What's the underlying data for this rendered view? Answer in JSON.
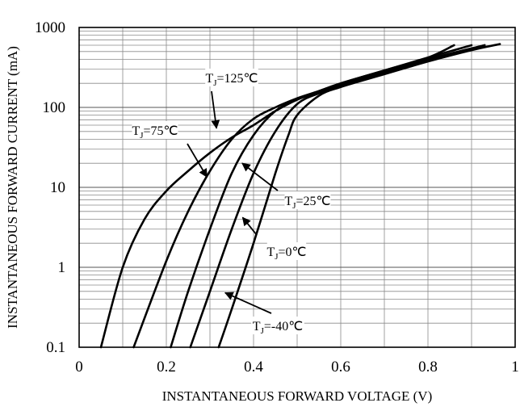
{
  "chart_data": {
    "type": "line",
    "title": "",
    "xlabel": "INSTANTANEOUS FORWARD VOLTAGE (V)",
    "ylabel": "INSTANTANEOUS FORWARD CURRENT (mA)",
    "xlim": [
      0,
      1
    ],
    "ylim": [
      0.1,
      1000
    ],
    "yscale": "log",
    "grid": true,
    "legend": "none",
    "x_ticks": [
      "0",
      "0.2",
      "0.4",
      "0.6",
      "0.8",
      "1"
    ],
    "y_ticks": [
      "0.1",
      "1",
      "10",
      "100",
      "1000"
    ],
    "series": [
      {
        "name": "TJ=125℃",
        "label_main": "T",
        "label_sub": "J",
        "label_rest": "=125℃",
        "points": [
          [
            0.05,
            0.1
          ],
          [
            0.1,
            1
          ],
          [
            0.15,
            4
          ],
          [
            0.2,
            9
          ],
          [
            0.25,
            16
          ],
          [
            0.3,
            27
          ],
          [
            0.35,
            42
          ],
          [
            0.4,
            60
          ],
          [
            0.45,
            90
          ],
          [
            0.5,
            125
          ],
          [
            0.55,
            160
          ],
          [
            0.6,
            200
          ],
          [
            0.7,
            290
          ],
          [
            0.8,
            420
          ],
          [
            0.86,
            600
          ]
        ]
      },
      {
        "name": "TJ=75℃",
        "label_main": "T",
        "label_sub": "J",
        "label_rest": "=75℃",
        "points": [
          [
            0.125,
            0.1
          ],
          [
            0.2,
            1.2
          ],
          [
            0.25,
            5
          ],
          [
            0.3,
            16
          ],
          [
            0.35,
            40
          ],
          [
            0.4,
            72
          ],
          [
            0.45,
            100
          ],
          [
            0.5,
            130
          ],
          [
            0.55,
            160
          ],
          [
            0.6,
            200
          ],
          [
            0.7,
            290
          ],
          [
            0.8,
            420
          ],
          [
            0.9,
            600
          ]
        ]
      },
      {
        "name": "TJ=25℃",
        "label_main": "T",
        "label_sub": "J",
        "label_rest": "=25℃",
        "points": [
          [
            0.21,
            0.1
          ],
          [
            0.25,
            0.5
          ],
          [
            0.3,
            3
          ],
          [
            0.35,
            15
          ],
          [
            0.4,
            45
          ],
          [
            0.45,
            90
          ],
          [
            0.5,
            125
          ],
          [
            0.55,
            155
          ],
          [
            0.6,
            190
          ],
          [
            0.7,
            275
          ],
          [
            0.8,
            400
          ],
          [
            0.93,
            600
          ]
        ]
      },
      {
        "name": "TJ=0℃",
        "label_main": "T",
        "label_sub": "J",
        "label_rest": "=0℃",
        "points": [
          [
            0.255,
            0.1
          ],
          [
            0.3,
            0.5
          ],
          [
            0.35,
            3
          ],
          [
            0.4,
            15
          ],
          [
            0.45,
            50
          ],
          [
            0.5,
            110
          ],
          [
            0.55,
            150
          ],
          [
            0.6,
            185
          ],
          [
            0.7,
            270
          ],
          [
            0.8,
            390
          ],
          [
            0.93,
            600
          ]
        ]
      },
      {
        "name": "TJ=-40℃",
        "label_main": "T",
        "label_sub": "J",
        "label_rest": "=-40℃",
        "points": [
          [
            0.32,
            0.1
          ],
          [
            0.35,
            0.3
          ],
          [
            0.4,
            2
          ],
          [
            0.45,
            15
          ],
          [
            0.48,
            45
          ],
          [
            0.5,
            80
          ],
          [
            0.55,
            140
          ],
          [
            0.6,
            180
          ],
          [
            0.7,
            260
          ],
          [
            0.8,
            375
          ],
          [
            0.9,
            520
          ],
          [
            0.965,
            620
          ]
        ]
      }
    ]
  }
}
